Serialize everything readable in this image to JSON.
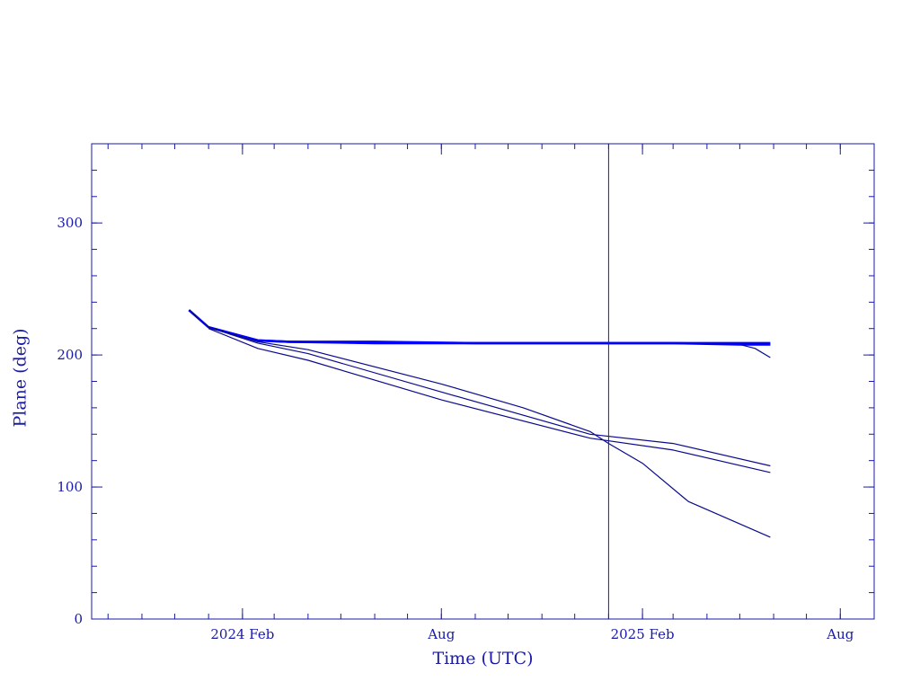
{
  "chart_data": {
    "type": "line",
    "title": "",
    "xlabel": "Time (UTC)",
    "ylabel": "Plane (deg)",
    "xlim": [
      "2023-09-16",
      "2025-09-01"
    ],
    "ylim": [
      0,
      360
    ],
    "x_ticks": [
      {
        "date": "2024-02-01",
        "label": "2024 Feb"
      },
      {
        "date": "2024-08-01",
        "label": "Aug"
      },
      {
        "date": "2025-02-01",
        "label": "2025 Feb"
      },
      {
        "date": "2025-08-01",
        "label": "Aug"
      }
    ],
    "y_ticks": [
      {
        "value": 0,
        "label": "0"
      },
      {
        "value": 100,
        "label": "100"
      },
      {
        "value": 200,
        "label": "200"
      },
      {
        "value": 300,
        "label": "300"
      }
    ],
    "vertical_marker": {
      "date": "2025-01-01"
    },
    "grid": false,
    "colors": {
      "axes": "#1a1aa8",
      "thin_series": "#0a0a8c",
      "thick_series": "#0000ff"
    },
    "series": [
      {
        "values": [
          [
            "2023-12-14",
            234
          ],
          [
            "2024-01-01",
            221
          ],
          [
            "2024-02-15",
            211
          ],
          [
            "2024-03-15",
            210
          ],
          [
            "2024-06-01",
            210
          ],
          [
            "2024-09-01",
            209
          ],
          [
            "2024-12-01",
            209
          ],
          [
            "2025-03-01",
            209
          ],
          [
            "2025-05-29",
            209
          ]
        ],
        "style": "thick"
      },
      {
        "values": [
          [
            "2024-01-01",
            221
          ],
          [
            "2024-02-15",
            211
          ],
          [
            "2024-03-15",
            210
          ],
          [
            "2024-06-01",
            209
          ],
          [
            "2024-09-01",
            209
          ],
          [
            "2024-12-01",
            209
          ],
          [
            "2025-03-01",
            209
          ],
          [
            "2025-05-01",
            208
          ],
          [
            "2025-05-29",
            208
          ]
        ],
        "style": "thick"
      },
      {
        "values": [
          [
            "2025-05-01",
            208
          ],
          [
            "2025-05-15",
            205
          ],
          [
            "2025-05-29",
            198
          ]
        ],
        "style": "thin"
      },
      {
        "values": [
          [
            "2023-12-14",
            234
          ],
          [
            "2024-01-01",
            221
          ],
          [
            "2024-02-15",
            210
          ],
          [
            "2024-04-01",
            204
          ],
          [
            "2024-08-01",
            178
          ],
          [
            "2024-10-15",
            160
          ],
          [
            "2024-12-15",
            142
          ],
          [
            "2025-01-01",
            133
          ],
          [
            "2025-02-01",
            118
          ],
          [
            "2025-03-15",
            89
          ],
          [
            "2025-05-29",
            62
          ]
        ],
        "style": "thin"
      },
      {
        "values": [
          [
            "2024-01-01",
            221
          ],
          [
            "2024-02-15",
            209
          ],
          [
            "2024-04-01",
            201
          ],
          [
            "2024-08-01",
            172
          ],
          [
            "2024-12-15",
            140
          ],
          [
            "2025-03-01",
            133
          ],
          [
            "2025-05-29",
            116
          ]
        ],
        "style": "thin"
      },
      {
        "values": [
          [
            "2024-01-01",
            220
          ],
          [
            "2024-02-15",
            205
          ],
          [
            "2024-04-01",
            196
          ],
          [
            "2024-08-01",
            166
          ],
          [
            "2024-12-15",
            137
          ],
          [
            "2025-03-01",
            128
          ],
          [
            "2025-05-29",
            111
          ]
        ],
        "style": "thin"
      }
    ]
  }
}
